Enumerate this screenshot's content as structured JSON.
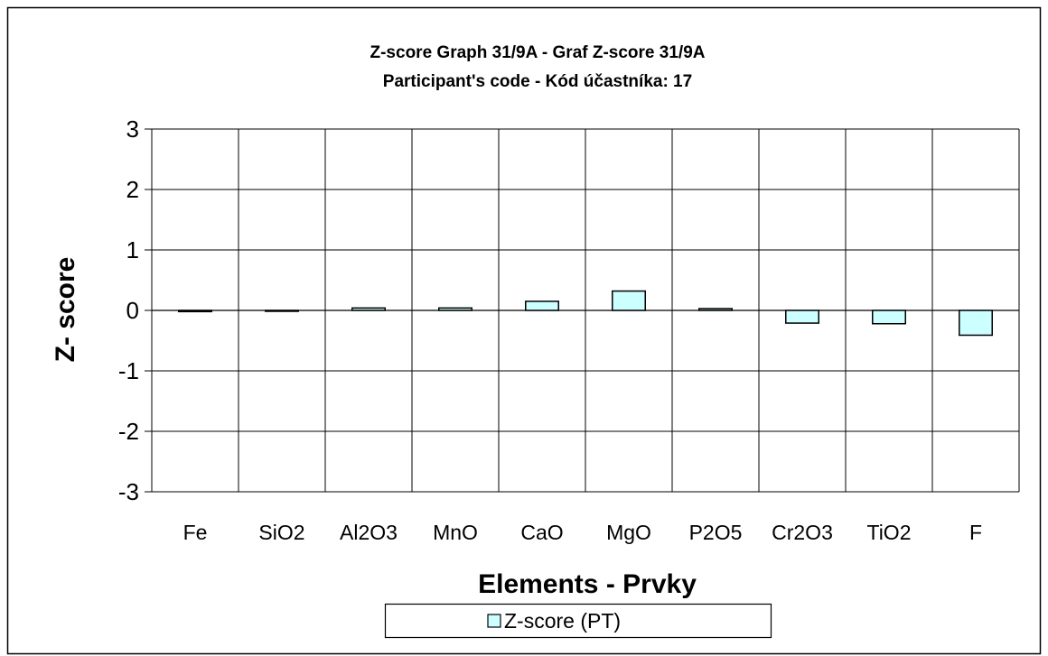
{
  "chart_data": {
    "type": "bar",
    "title": "Z-score Graph 31/9A - Graf Z-score 31/9A",
    "subtitle": "Participant's code - Kód účastníka:  17",
    "xlabel": "Elements - Prvky",
    "ylabel": "Z- score",
    "ylim": [
      -3,
      3
    ],
    "yticks": [
      "3",
      "2",
      "1",
      "0",
      "-1",
      "-2",
      "-3"
    ],
    "categories": [
      "Fe",
      "SiO2",
      "Al2O3",
      "MnO",
      "CaO",
      "MgO",
      "P2O5",
      "Cr2O3",
      "TiO2",
      "F"
    ],
    "series": [
      {
        "name": "Z-score (PT)",
        "values": [
          -0.02,
          -0.01,
          0.04,
          0.04,
          0.15,
          0.32,
          0.03,
          -0.21,
          -0.22,
          -0.41
        ]
      }
    ],
    "grid": true,
    "legend": "bottom",
    "colors": {
      "bar_fill": "#ccffff",
      "bar_stroke": "#000000",
      "grid": "#000000"
    }
  }
}
